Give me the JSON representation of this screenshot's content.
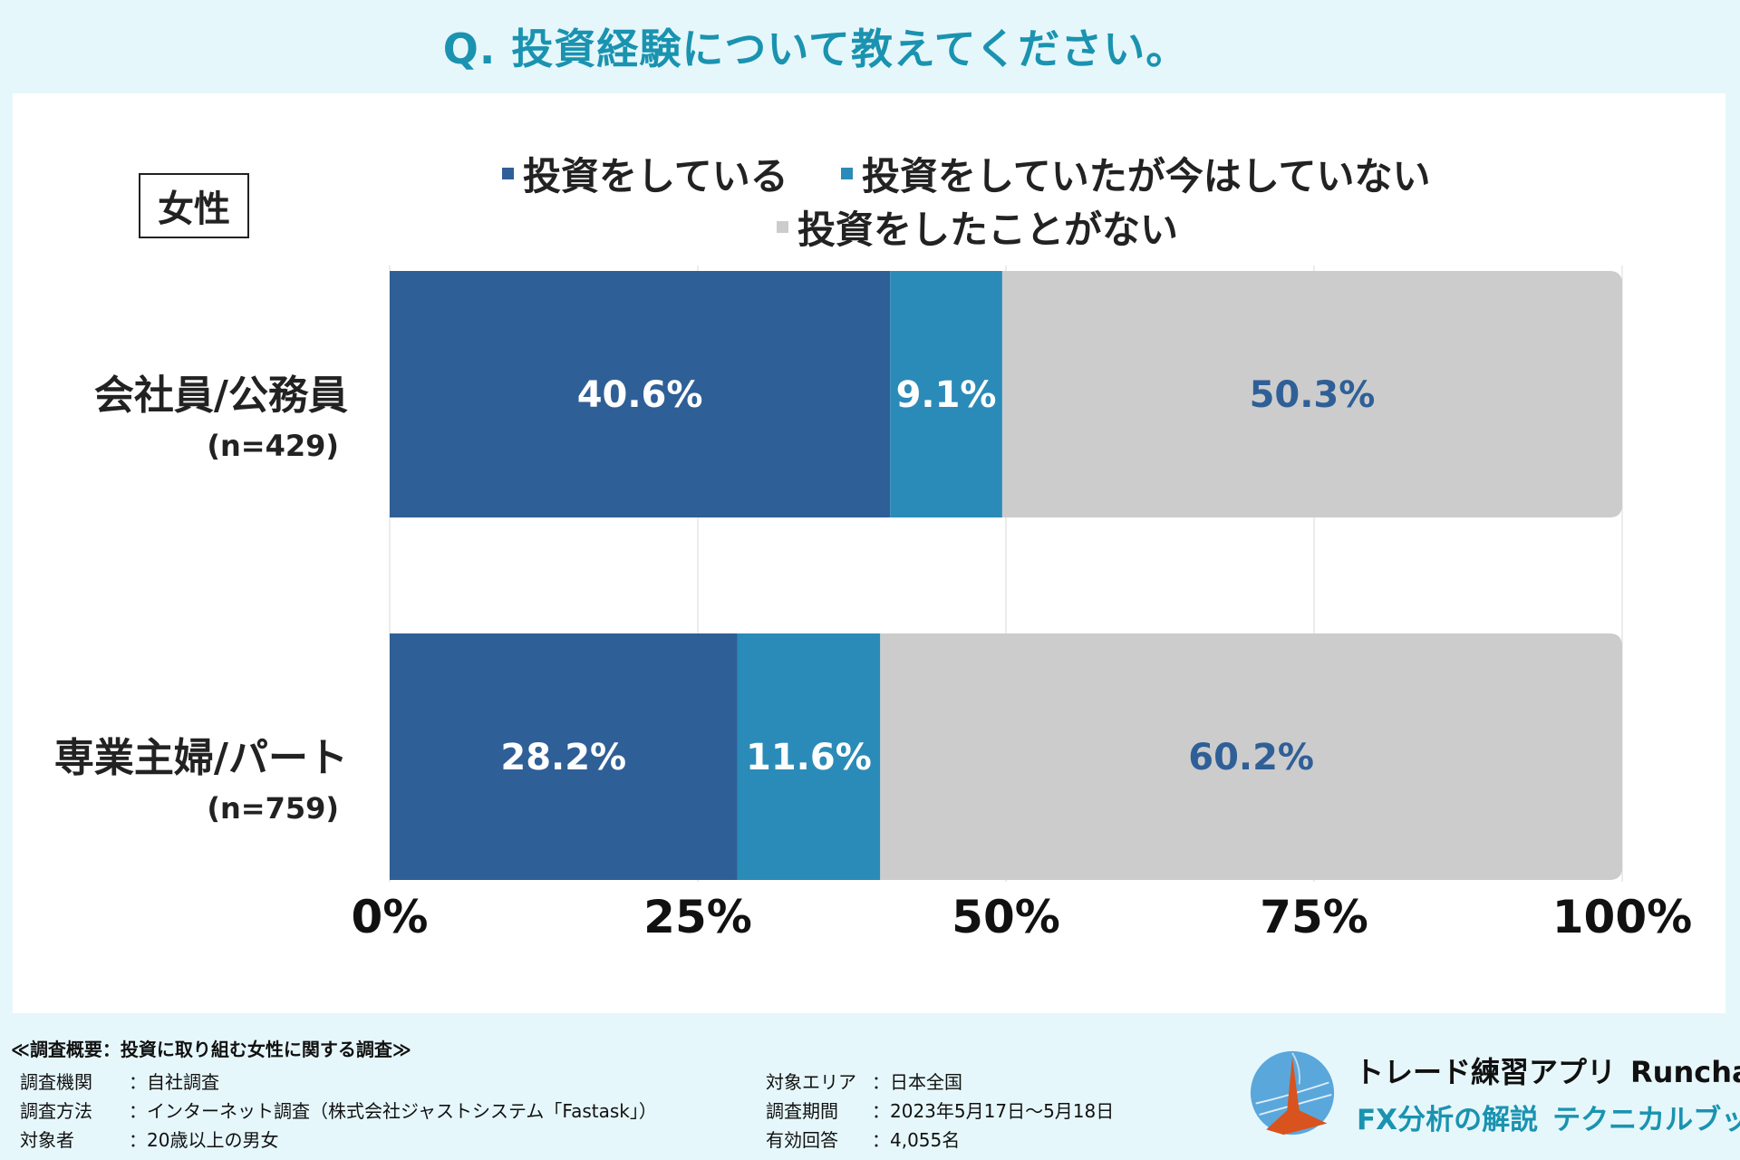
{
  "title": "Q. 投資経験について教えてください。",
  "gender_label": "女性",
  "colors": {
    "invested": "#2f5f97",
    "previously": "#2b8bb8",
    "never": "#cccccc",
    "title": "#1a93b0",
    "never_label": "#2f5f97"
  },
  "chart_data": {
    "type": "bar",
    "orientation": "horizontal",
    "stacked": true,
    "title": "Q. 投資経験について教えてください。",
    "categories": [
      "会社員/公務員",
      "専業主婦/パート"
    ],
    "sample_sizes": [
      "(n=429)",
      "(n=759)"
    ],
    "series": [
      {
        "name": "投資をしている",
        "values": [
          40.6,
          28.2
        ]
      },
      {
        "name": "投資をしていたが今はしていない",
        "values": [
          9.1,
          11.6
        ]
      },
      {
        "name": "投資をしたことがない",
        "values": [
          50.3,
          60.2
        ]
      }
    ],
    "xlim": [
      0,
      100
    ],
    "xticks": [
      "0%",
      "25%",
      "50%",
      "75%",
      "100%"
    ],
    "grid": true,
    "legend_position": "top"
  },
  "footer": {
    "heading": "≪調査概要：投資に取り組む女性に関する調査≫",
    "left": [
      {
        "label": "調査機関",
        "value": "：自社調査"
      },
      {
        "label": "調査方法",
        "value": "：インターネット調査（株式会社ジャストシステム「Fastask」）"
      },
      {
        "label": "対象者",
        "value": "：20歳以上の男女"
      }
    ],
    "right": [
      {
        "label": "対象エリア",
        "value": "：日本全国"
      },
      {
        "label": "調査期間",
        "value": "：2023年5月17日～5月18日"
      },
      {
        "label": "有効回答",
        "value": "：4,055名"
      }
    ]
  },
  "brand": {
    "line1": "トレード練習アプリ",
    "line1_name": "Runcha",
    "line2a": "FX分析の解説",
    "line2b": "テクニカルブック"
  }
}
